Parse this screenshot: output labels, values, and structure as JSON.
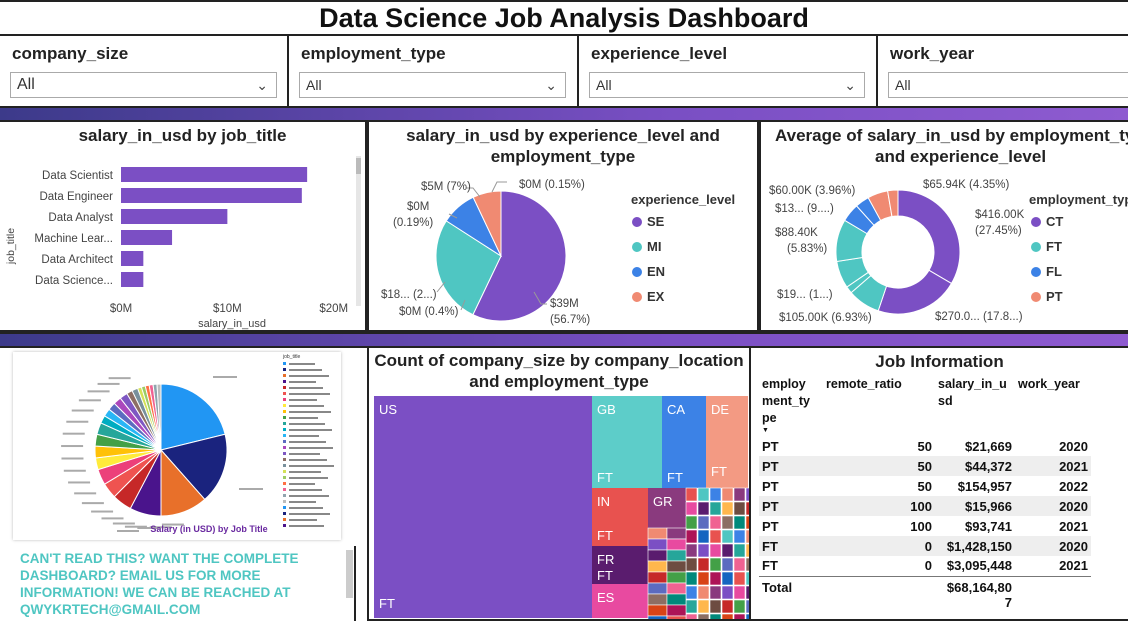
{
  "title": "Data Science Job Analysis Dashboard",
  "slicers": [
    {
      "label": "company_size",
      "value": "All"
    },
    {
      "label": "employment_type",
      "value": "All"
    },
    {
      "label": "experience_level",
      "value": "All"
    },
    {
      "label": "work_year",
      "value": "All"
    }
  ],
  "colors": {
    "se": "#7b4fc4",
    "mi": "#4fc6c2",
    "en": "#3c82e6",
    "ex": "#f08a72",
    "band": "#7a4fc4"
  },
  "bar_panel": {
    "title": "salary_in_usd by job_title",
    "ylabel": "job_title",
    "xlabel": "salary_in_usd",
    "ticks": [
      "$0M",
      "$10M",
      "$20M"
    ]
  },
  "pie_panel": {
    "title_line1": "salary_in_usd by experience_level and",
    "title_line2": "employment_type",
    "legend_title": "experience_level",
    "labels": {
      "ex": "$5M (7%)",
      "top": "$0M (0.15%)",
      "left1": "$0M",
      "left2": "(0.19%)",
      "mi": "$18... (2...)",
      "bottom": "$0M (0.4%)",
      "se1": "$39M",
      "se2": "(56.7%)"
    }
  },
  "donut_panel": {
    "title_line1": "Average of salary_in_usd by employment_typ",
    "title_line2": "and experience_level",
    "legend_title": "employment_typ",
    "labels": {
      "l1": "$60.00K (3.96%)",
      "l2": "$13... (9....)",
      "l3a": "$88.40K",
      "l3b": "(5.83%)",
      "l4": "$19... (1...)",
      "l5": "$105.00K (6.93%)",
      "t1": "$65.94K (4.35%)",
      "r1a": "$416.00K",
      "r1b": "(27.45%)",
      "b1": "$270.0... (17.8...)"
    }
  },
  "image_panel": {
    "caption": "Salary (in USD) by Job Title",
    "legend_header": "job_title"
  },
  "note": "CAN'T READ THIS? WANT THE COMPLETE DASHBOARD? EMAIL US FOR MORE INFORMATION! WE CAN BE REACHED AT QWYKRTECH@GMAIL.COM",
  "treemap_panel": {
    "title_line1": "Count of company_size by company_location",
    "title_line2": "and employment_type",
    "cells": {
      "us": "US",
      "us_ft": "FT",
      "gb": "GB",
      "gb_ft": "FT",
      "ca": "CA",
      "ca_ft": "FT",
      "de": "DE",
      "de_ft": "FT",
      "in": "IN",
      "in_ft": "FT",
      "gr": "GR",
      "fr": "FR",
      "fr_ft": "FT",
      "es": "ES"
    }
  },
  "job_info": {
    "title": "Job Information",
    "headers": [
      "employ ment_ty pe",
      "remote_ratio",
      "salary_in_u sd",
      "work_year"
    ],
    "rows": [
      [
        "PT",
        "50",
        "$21,669",
        "2020"
      ],
      [
        "PT",
        "50",
        "$44,372",
        "2021"
      ],
      [
        "PT",
        "50",
        "$154,957",
        "2022"
      ],
      [
        "PT",
        "100",
        "$15,966",
        "2020"
      ],
      [
        "PT",
        "100",
        "$93,741",
        "2021"
      ],
      [
        "FT",
        "0",
        "$1,428,150",
        "2020"
      ],
      [
        "FT",
        "0",
        "$3,095,448",
        "2021"
      ]
    ],
    "total_label": "Total",
    "total_value": "$68,164,80 7"
  },
  "chart_data": [
    {
      "type": "bar",
      "title": "salary_in_usd by job_title",
      "xlabel": "salary_in_usd",
      "ylabel": "job_title",
      "categories": [
        "Data Scientist",
        "Data Engineer",
        "Data Analyst",
        "Machine Lear...",
        "Data Architect",
        "Data Science..."
      ],
      "values": [
        17.5,
        17.0,
        10.0,
        4.8,
        2.1,
        2.1
      ],
      "xlim": [
        0,
        22
      ]
    },
    {
      "type": "pie",
      "title": "salary_in_usd by experience_level and employment_type",
      "categories": [
        "SE",
        "MI",
        "EN",
        "EX"
      ],
      "values": [
        56.7,
        26.8,
        8.8,
        7.0
      ]
    },
    {
      "type": "pie",
      "title": "Average of salary_in_usd by employment_typ and experience_level",
      "categories": [
        "CT",
        "FT",
        "FL",
        "PT"
      ],
      "values": [
        49.5,
        32.0,
        10.2,
        8.3
      ]
    }
  ]
}
